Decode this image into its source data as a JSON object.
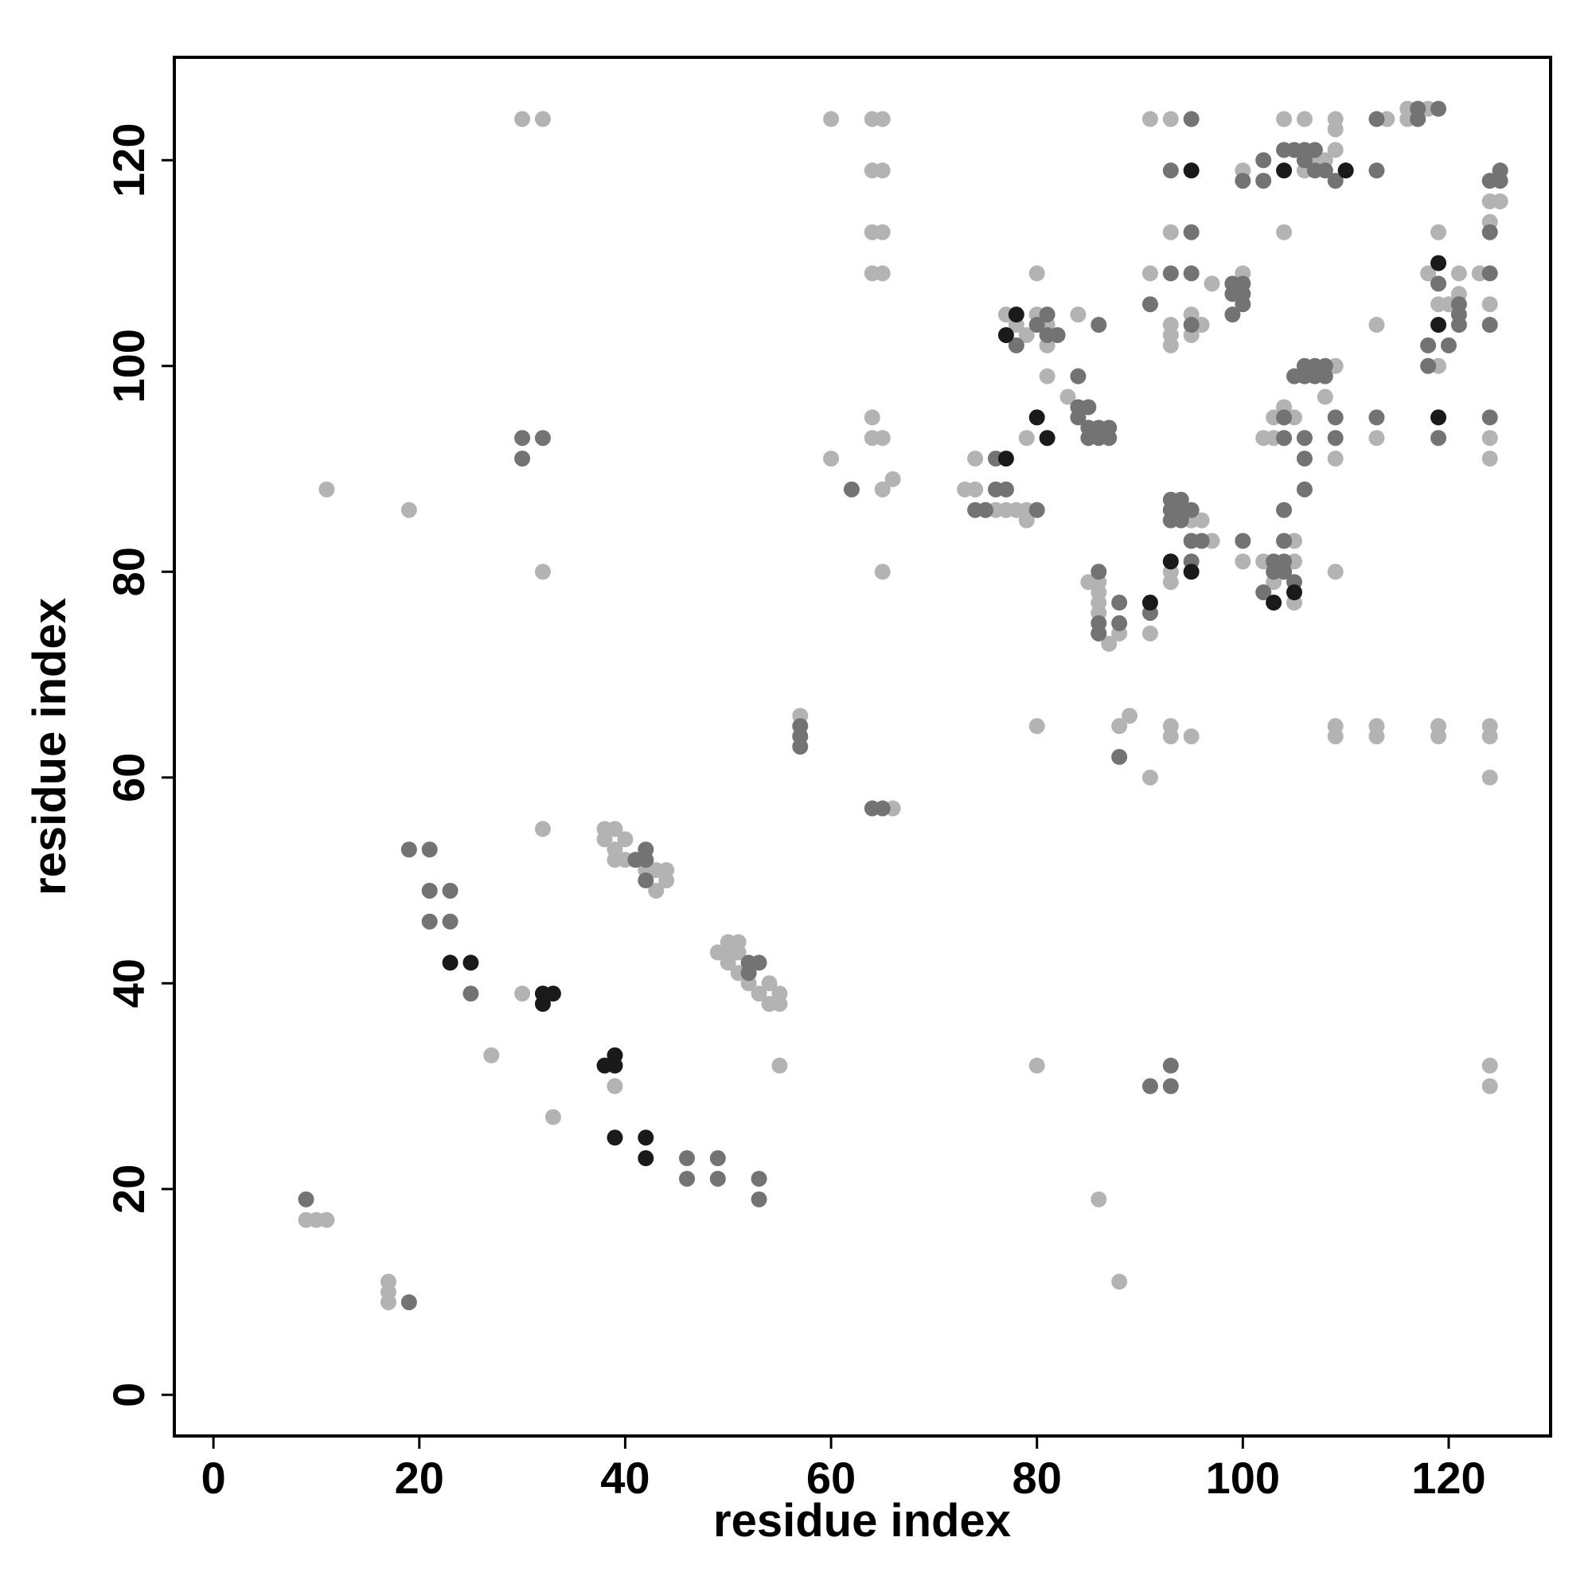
{
  "chart_data": {
    "type": "scatter",
    "x_label": "residue index",
    "y_label": "residue index",
    "xlim": [
      -3.8,
      129.9
    ],
    "ylim": [
      -4,
      130
    ],
    "xticks": [
      0,
      20,
      40,
      60,
      80,
      100,
      120
    ],
    "yticks": [
      0,
      20,
      40,
      60,
      80,
      100,
      120
    ],
    "series": [
      {
        "name": "light",
        "color": "#b3b3b3",
        "x": [
          30,
          32,
          60,
          64,
          65,
          91,
          93,
          104,
          106,
          109,
          109,
          114,
          116,
          116,
          118,
          64,
          65,
          64,
          65,
          64,
          65,
          11,
          19,
          32,
          60,
          64,
          64,
          65,
          65,
          66,
          65,
          32,
          30,
          27,
          33,
          39,
          55,
          9,
          10,
          11,
          17,
          17,
          17,
          38,
          39,
          38,
          40,
          39,
          41,
          39,
          40,
          42,
          43,
          44,
          43,
          44,
          49,
          50,
          51,
          50,
          51,
          50,
          51,
          52,
          53,
          54,
          55,
          54,
          55,
          57,
          66,
          80,
          80,
          86,
          88,
          88,
          89,
          91,
          93,
          93,
          95,
          109,
          109,
          113,
          113,
          119,
          119,
          124,
          124,
          124,
          124,
          124,
          73,
          74,
          74,
          76,
          77,
          78,
          79,
          79,
          77,
          78,
          79,
          80,
          81,
          81,
          80,
          79,
          81,
          83,
          84,
          85,
          86,
          86,
          86,
          86,
          87,
          88,
          86,
          91,
          93,
          93,
          95,
          96,
          97,
          100,
          102,
          103,
          104,
          105,
          105,
          105,
          109,
          91,
          93,
          93,
          93,
          93,
          95,
          95,
          96,
          97,
          100,
          100,
          104,
          102,
          103,
          103,
          104,
          105,
          108,
          109,
          109,
          113,
          113,
          124,
          124,
          106,
          107,
          108,
          106,
          109,
          110,
          118,
          119,
          119,
          120,
          121,
          121,
          123,
          124,
          124,
          125,
          124,
          119
        ],
        "y": [
          124,
          124,
          124,
          124,
          124,
          124,
          124,
          124,
          124,
          124,
          123,
          124,
          125,
          124,
          125,
          119,
          119,
          113,
          113,
          109,
          109,
          88,
          86,
          80,
          91,
          95,
          93,
          93,
          88,
          89,
          80,
          55,
          39,
          33,
          27,
          30,
          32,
          17,
          17,
          17,
          11,
          10,
          9,
          55,
          55,
          54,
          54,
          53,
          52,
          52,
          52,
          51,
          51,
          51,
          49,
          50,
          43,
          44,
          44,
          43,
          43,
          42,
          41,
          40,
          39,
          40,
          39,
          38,
          38,
          66,
          57,
          65,
          32,
          19,
          11,
          65,
          66,
          60,
          65,
          64,
          64,
          65,
          64,
          65,
          64,
          65,
          64,
          65,
          64,
          60,
          32,
          30,
          88,
          88,
          91,
          86,
          86,
          86,
          85,
          86,
          105,
          104,
          103,
          105,
          104,
          102,
          109,
          93,
          99,
          97,
          105,
          79,
          79,
          78,
          77,
          76,
          73,
          74,
          74,
          74,
          80,
          79,
          85,
          85,
          83,
          81,
          81,
          79,
          80,
          77,
          81,
          83,
          80,
          109,
          113,
          104,
          103,
          102,
          105,
          103,
          104,
          108,
          109,
          119,
          113,
          93,
          95,
          93,
          96,
          95,
          97,
          100,
          91,
          104,
          93,
          93,
          91,
          121,
          120,
          120,
          119,
          121,
          119,
          109,
          106,
          100,
          106,
          109,
          107,
          109,
          114,
          116,
          116,
          106,
          113
        ]
      },
      {
        "name": "medium",
        "color": "#737373",
        "x": [
          30,
          32,
          30,
          19,
          21,
          21,
          23,
          21,
          23,
          25,
          19,
          9,
          46,
          49,
          46,
          49,
          53,
          53,
          42,
          41,
          42,
          42,
          52,
          53,
          52,
          57,
          57,
          57,
          64,
          65,
          62,
          93,
          91,
          93,
          88,
          76,
          77,
          74,
          75,
          76,
          78,
          81,
          81,
          80,
          82,
          84,
          84,
          84,
          85,
          85,
          85,
          86,
          86,
          87,
          87,
          80,
          86,
          86,
          86,
          86,
          88,
          88,
          91,
          91,
          93,
          93,
          93,
          93,
          93,
          94,
          94,
          94,
          95,
          95,
          96,
          95,
          95,
          95,
          95,
          95,
          100,
          99,
          100,
          100,
          99,
          100,
          99,
          102,
          103,
          104,
          103,
          104,
          104,
          104,
          105,
          106,
          106,
          106,
          100,
          102,
          102,
          104,
          105,
          106,
          107,
          106,
          107,
          108,
          109,
          105,
          106,
          107,
          108,
          106,
          107,
          108,
          109,
          109,
          113,
          113,
          113,
          117,
          117,
          119,
          118,
          118,
          119,
          119,
          120,
          121,
          121,
          121,
          124,
          125,
          125,
          124,
          124,
          124,
          124,
          104,
          104
        ],
        "y": [
          93,
          93,
          91,
          53,
          53,
          49,
          49,
          46,
          46,
          39,
          9,
          19,
          23,
          23,
          21,
          21,
          21,
          19,
          53,
          52,
          52,
          50,
          42,
          42,
          41,
          65,
          64,
          63,
          57,
          57,
          88,
          32,
          30,
          30,
          62,
          88,
          88,
          86,
          86,
          91,
          102,
          105,
          103,
          104,
          103,
          99,
          96,
          95,
          96,
          94,
          93,
          94,
          93,
          94,
          93,
          86,
          104,
          80,
          75,
          74,
          77,
          75,
          76,
          106,
          119,
          109,
          87,
          86,
          85,
          87,
          86,
          85,
          86,
          83,
          83,
          81,
          109,
          113,
          124,
          104,
          83,
          108,
          107,
          106,
          105,
          108,
          107,
          78,
          81,
          81,
          80,
          80,
          86,
          83,
          79,
          91,
          93,
          88,
          118,
          118,
          120,
          121,
          121,
          121,
          121,
          120,
          119,
          119,
          118,
          99,
          100,
          100,
          100,
          99,
          99,
          99,
          95,
          93,
          95,
          119,
          124,
          124,
          125,
          125,
          102,
          100,
          93,
          108,
          102,
          106,
          105,
          104,
          118,
          118,
          119,
          109,
          104,
          95,
          113,
          95,
          93
        ]
      },
      {
        "name": "dark",
        "color": "#1a1a1a",
        "x": [
          23,
          25,
          32,
          33,
          32,
          38,
          39,
          39,
          39,
          42,
          42,
          77,
          78,
          77,
          80,
          81,
          93,
          95,
          95,
          91,
          104,
          103,
          105,
          110,
          119,
          119,
          119
        ],
        "y": [
          42,
          42,
          39,
          39,
          38,
          32,
          32,
          33,
          25,
          25,
          23,
          91,
          105,
          103,
          95,
          93,
          81,
          80,
          119,
          77,
          119,
          77,
          78,
          119,
          110,
          104,
          95
        ]
      }
    ]
  }
}
